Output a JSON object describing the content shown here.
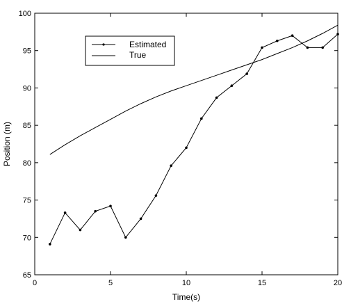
{
  "chart_data": {
    "type": "line",
    "title": "",
    "xlabel": "Time(s)",
    "ylabel": "Position (m)",
    "xlim": [
      0,
      20
    ],
    "ylim": [
      65,
      100
    ],
    "xticks": [
      0,
      5,
      10,
      15,
      20
    ],
    "yticks": [
      65,
      70,
      75,
      80,
      85,
      90,
      95,
      100
    ],
    "grid": false,
    "legend_position": "top-left",
    "series": [
      {
        "name": "Estimated",
        "marker": "dot",
        "color": "#000000",
        "x": [
          1,
          2,
          3,
          4,
          5,
          6,
          7,
          8,
          9,
          10,
          11,
          12,
          13,
          14,
          15,
          16,
          17,
          18,
          19,
          20
        ],
        "y": [
          69.1,
          73.3,
          71.0,
          73.5,
          74.2,
          70.0,
          72.5,
          75.6,
          79.6,
          82.0,
          85.9,
          88.7,
          90.3,
          91.9,
          95.4,
          96.3,
          97.0,
          95.4,
          95.4,
          97.2
        ]
      },
      {
        "name": "True",
        "marker": "none",
        "color": "#000000",
        "x": [
          1,
          2,
          3,
          4,
          5,
          6,
          7,
          8,
          9,
          10,
          11,
          12,
          13,
          14,
          15,
          16,
          17,
          18,
          19,
          20
        ],
        "y": [
          81.1,
          82.4,
          83.6,
          84.7,
          85.8,
          86.9,
          87.9,
          88.8,
          89.6,
          90.3,
          91.0,
          91.7,
          92.4,
          93.1,
          93.8,
          94.6,
          95.4,
          96.3,
          97.3,
          98.4
        ]
      }
    ]
  }
}
